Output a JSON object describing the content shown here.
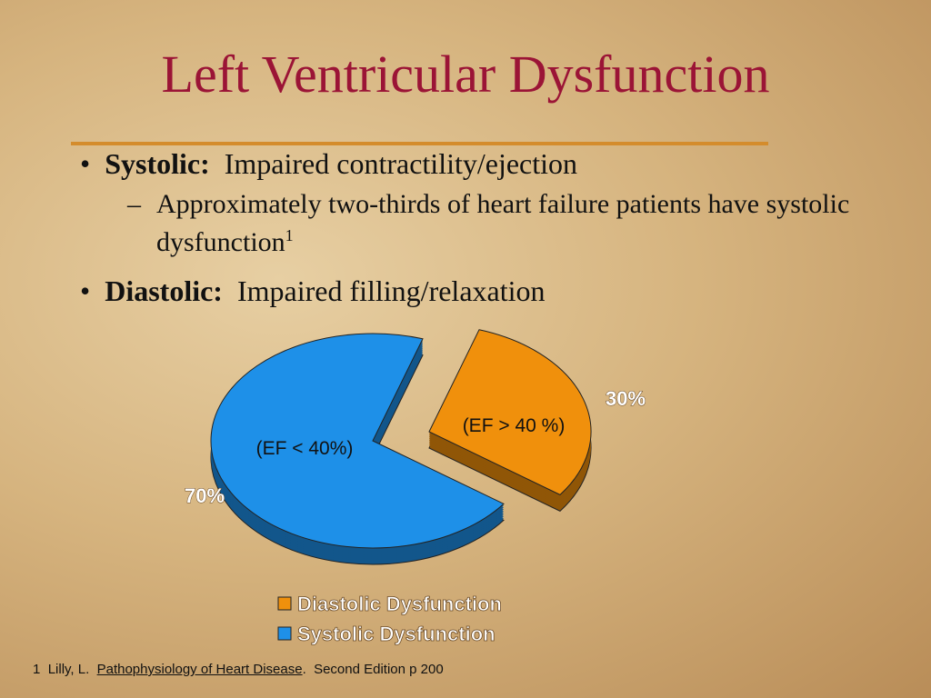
{
  "title": "Left Ventricular Dysfunction",
  "bullets": [
    {
      "label": "Systolic:",
      "text": "Impaired contractility/ejection",
      "sub": {
        "text": "Approximately two-thirds of heart failure patients have systolic dysfunction",
        "ref": "1"
      }
    },
    {
      "label": "Diastolic:",
      "text": "Impaired filling/relaxation"
    }
  ],
  "chart_data": {
    "type": "pie",
    "categories": [
      "Diastolic Dysfunction",
      "Systolic Dysfunction"
    ],
    "values": [
      30,
      70
    ],
    "value_labels": [
      "30%",
      "70%"
    ],
    "annotations": [
      "(EF > 40 %)",
      "(EF < 40%)"
    ],
    "colors": [
      "#f0900c",
      "#1e90e8"
    ],
    "legend": "bottom"
  },
  "footnote": {
    "number": "1",
    "author": "Lilly, L.",
    "book": "Pathophysiology of Heart Disease",
    "rest": ".  Second Edition p 200"
  }
}
